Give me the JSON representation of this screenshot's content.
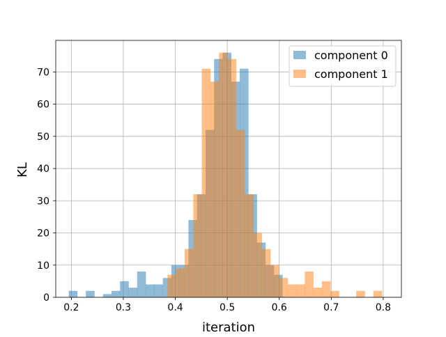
{
  "chart_data": {
    "type": "histogram",
    "xlabel": "iteration",
    "ylabel": "KL",
    "xlim": [
      0.17,
      0.835
    ],
    "ylim": [
      0,
      79.8
    ],
    "xticks": [
      "0.2",
      "0.3",
      "0.4",
      "0.5",
      "0.6",
      "0.7",
      "0.8"
    ],
    "xtick_values": [
      0.2,
      0.3,
      0.4,
      0.5,
      0.6,
      0.7,
      0.8
    ],
    "yticks": [
      "0",
      "10",
      "20",
      "30",
      "40",
      "50",
      "60",
      "70"
    ],
    "ytick_values": [
      0,
      10,
      20,
      30,
      40,
      50,
      60,
      70
    ],
    "grid": true,
    "legend_position": "top-right",
    "series": [
      {
        "name": "component 0",
        "color": "#1f77b4",
        "alpha": 0.5,
        "bin_start": 0.195,
        "bin_width": 0.01645,
        "counts": [
          2,
          0,
          2,
          0,
          1,
          2,
          5,
          3,
          8,
          4,
          4,
          6,
          10,
          10,
          24,
          32,
          52,
          74,
          76,
          67,
          71,
          32,
          17,
          10,
          7,
          0
        ]
      },
      {
        "name": "component 1",
        "color": "#ff7f0e",
        "alpha": 0.5,
        "bin_start": 0.385,
        "bin_width": 0.0165,
        "counts": [
          7,
          9,
          15,
          32,
          71,
          67,
          76,
          74,
          52,
          32,
          20,
          15,
          10,
          6,
          4,
          4,
          8,
          3,
          5,
          2,
          0,
          0,
          2,
          0,
          2
        ]
      }
    ]
  }
}
